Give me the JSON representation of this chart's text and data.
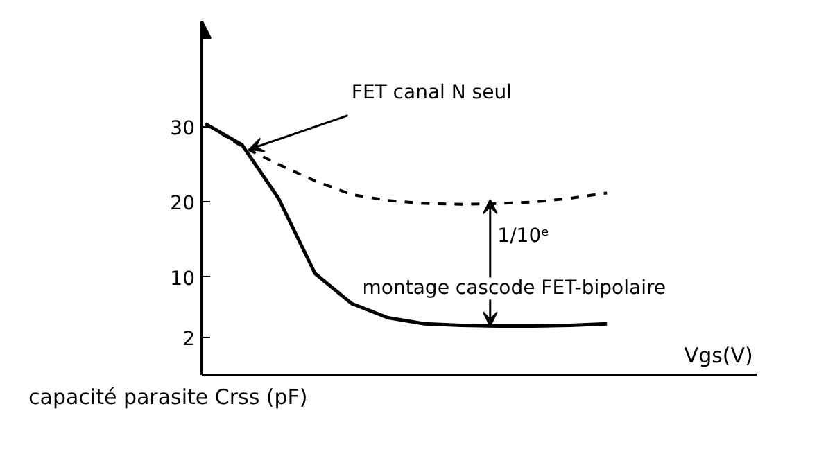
{
  "chart_data": {
    "type": "line",
    "xlabel": "Vgs(V)",
    "ylabel": "capacité parasite Crss (pF)",
    "categories": [
      null,
      null,
      null,
      null,
      null,
      null,
      null,
      null,
      null,
      null,
      null,
      null
    ],
    "ylim": [
      -3,
      44
    ],
    "yticks": [
      2,
      10,
      20,
      30
    ],
    "tick_labels": "y",
    "grid": false,
    "series": [
      {
        "color": "#000000",
        "line_style": "solid",
        "values": [
          30.4,
          27.6,
          20.5,
          10.5,
          6.5,
          4.6,
          3.8,
          3.6,
          3.5,
          3.5,
          3.6,
          3.8
        ]
      },
      {
        "color": "#000000",
        "line_style": "dashed",
        "values": [
          30.4,
          27.4,
          25,
          22.8,
          21,
          20.2,
          19.8,
          19.7,
          19.8,
          20,
          20.5,
          21.2
        ]
      }
    ],
    "annotations": [
      "FET canal N seul",
      "1/10ᵉ",
      "montage cascode FET-bipolaire"
    ]
  }
}
